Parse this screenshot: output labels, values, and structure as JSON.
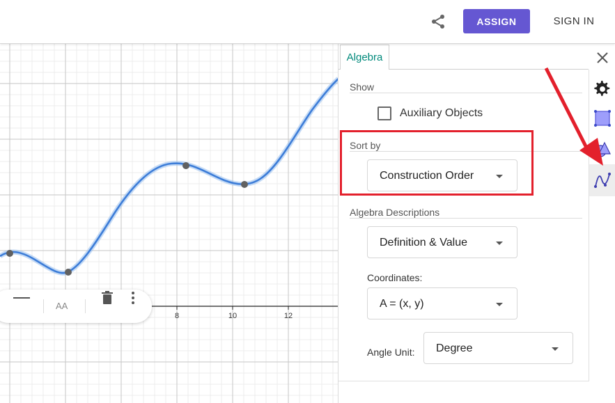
{
  "header": {
    "share_icon": "share-icon",
    "assign_label": "ASSIGN",
    "signin_label": "SIGN IN",
    "colors": {
      "assign_bg": "#6557d2"
    }
  },
  "graph": {
    "x_tick_labels": [
      "8",
      "10",
      "12"
    ],
    "curve_color": "#3d7dd8"
  },
  "style_bar": {
    "icons": [
      "line-style-icon",
      "text-size-icon",
      "delete-icon",
      "more-options-icon"
    ],
    "text_size_label": "AA"
  },
  "panel": {
    "tab_label": "Algebra",
    "show": {
      "title": "Show",
      "auxiliary_label": "Auxiliary Objects",
      "auxiliary_checked": false
    },
    "sort_by": {
      "title": "Sort by",
      "value": "Construction Order"
    },
    "algebra_descriptions": {
      "title": "Algebra Descriptions",
      "value": "Definition & Value"
    },
    "coordinates": {
      "label": "Coordinates:",
      "value": "A = (x, y)"
    },
    "angle_unit": {
      "label": "Angle Unit:",
      "value": "Degree"
    }
  },
  "sidebar_icons": [
    "close-icon",
    "gear-icon",
    "graphics-style-icon",
    "shapes-icon",
    "algebra-curve-icon"
  ],
  "annotations": {
    "highlight_color": "#e3202c"
  }
}
